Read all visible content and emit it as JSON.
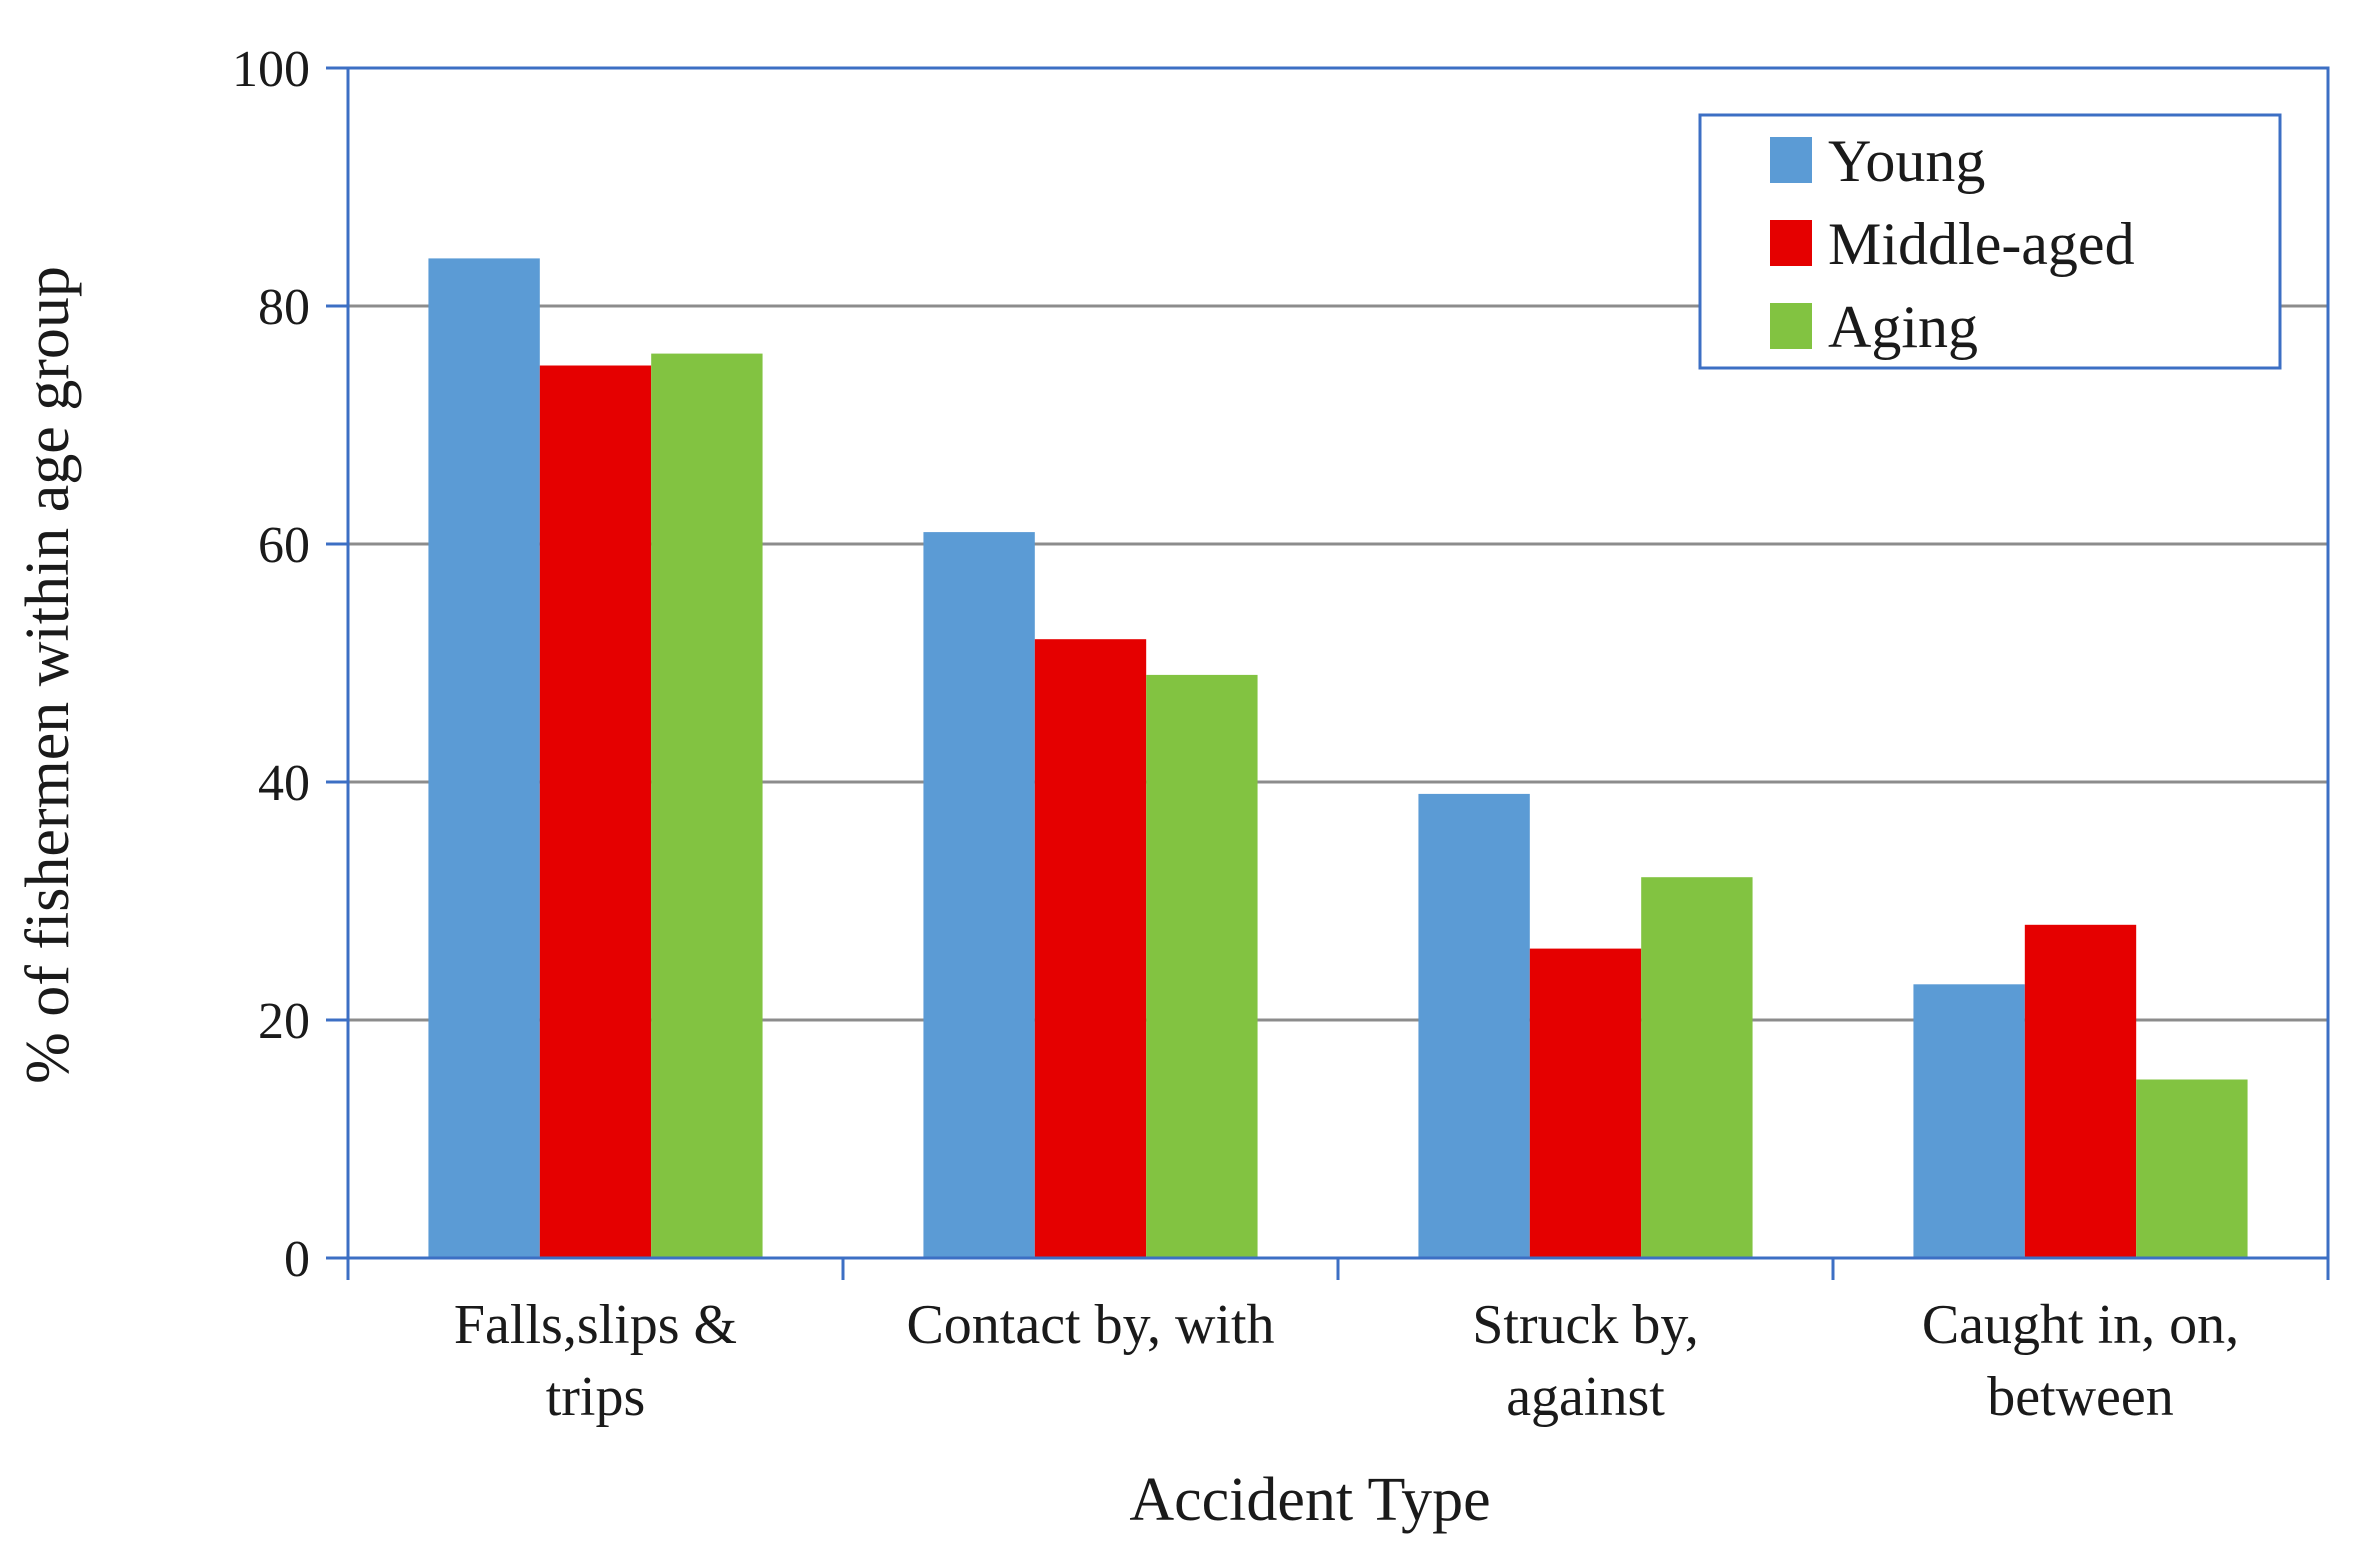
{
  "chart_data": {
    "type": "bar",
    "title": "",
    "xlabel": "Accident Type",
    "ylabel": "% of fishermen within age group",
    "ylim": [
      0,
      100
    ],
    "yticks": [
      0,
      20,
      40,
      60,
      80,
      100
    ],
    "grid": true,
    "legend_position": "top-right",
    "categories": [
      [
        "Falls,slips &",
        "trips"
      ],
      [
        "Contact by, with"
      ],
      [
        "Struck by,",
        "against"
      ],
      [
        "Caught in, on,",
        "between"
      ]
    ],
    "series": [
      {
        "name": "Young",
        "color": "#5b9bd5",
        "values": [
          84,
          61,
          39,
          23
        ]
      },
      {
        "name": "Middle-aged",
        "color": "#e50000",
        "values": [
          75,
          52,
          26,
          28
        ]
      },
      {
        "name": "Aging",
        "color": "#82c341",
        "values": [
          76,
          49,
          32,
          15
        ]
      }
    ],
    "colors": {
      "axis": "#3c6fc4",
      "grid": "#8c8c8c",
      "legend_border": "#3c6fc4"
    }
  }
}
